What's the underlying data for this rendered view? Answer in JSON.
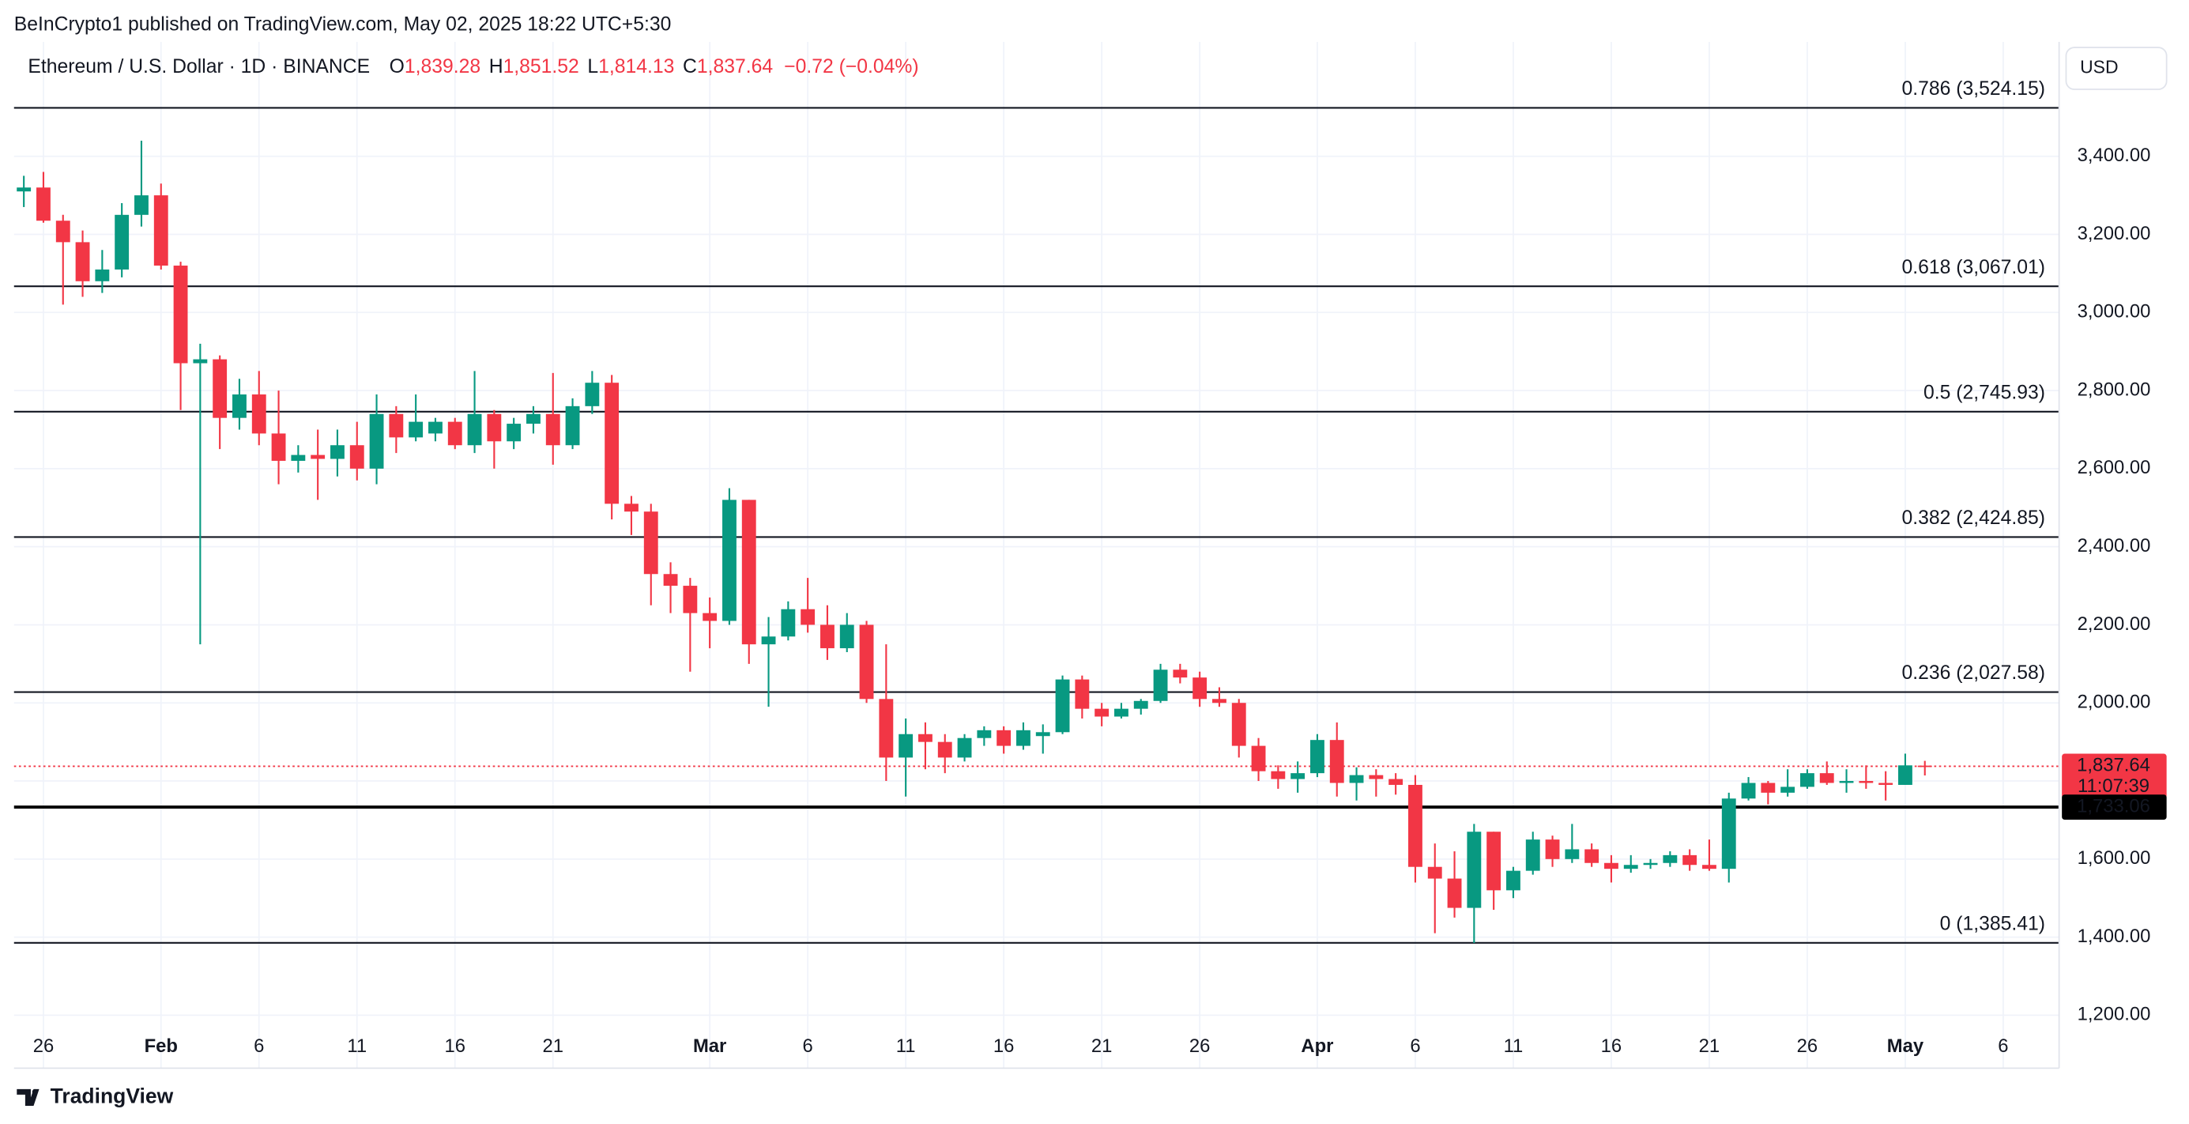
{
  "header": {
    "published": "BeInCrypto1 published on TradingView.com, May 02, 2025 18:22 UTC+5:30",
    "symbol": "Ethereum / U.S. Dollar · 1D · BINANCE",
    "ohlc": [
      {
        "key": "O",
        "value": "1,839.28"
      },
      {
        "key": "H",
        "value": "1,851.52"
      },
      {
        "key": "L",
        "value": "1,814.13"
      },
      {
        "key": "C",
        "value": "1,837.64"
      }
    ],
    "change": "−0.72 (−0.04%)"
  },
  "chart_data": {
    "type": "candlestick",
    "currency": "USD",
    "categories": [
      null,
      "26",
      null,
      null,
      null,
      null,
      null,
      "Feb",
      null,
      null,
      null,
      null,
      "6",
      null,
      null,
      null,
      null,
      "11",
      null,
      null,
      null,
      null,
      "16",
      null,
      null,
      null,
      null,
      "21",
      null,
      null,
      null,
      null,
      null,
      null,
      null,
      "Mar",
      null,
      null,
      null,
      null,
      "6",
      null,
      null,
      null,
      null,
      "11",
      null,
      null,
      null,
      null,
      "16",
      null,
      null,
      null,
      null,
      "21",
      null,
      null,
      null,
      null,
      "26",
      null,
      null,
      null,
      null,
      null,
      "Apr",
      null,
      null,
      null,
      null,
      "6",
      null,
      null,
      null,
      null,
      "11",
      null,
      null,
      null,
      null,
      "16",
      null,
      null,
      null,
      null,
      "21",
      null,
      null,
      null,
      null,
      "26",
      null,
      null,
      null,
      null,
      "May",
      null,
      null,
      null,
      null,
      "6",
      null,
      null
    ],
    "open": [
      3310,
      3320,
      3235,
      3180,
      3080,
      3110,
      3250,
      3300,
      3120,
      2870,
      2880,
      2730,
      2790,
      2690,
      2620,
      2635,
      2625,
      2660,
      2600,
      2740,
      2680,
      2690,
      2720,
      2660,
      2740,
      2670,
      2715,
      2740,
      2660,
      2760,
      2820,
      2510,
      2490,
      2330,
      2300,
      2230,
      2210,
      2520,
      2150,
      2170,
      2240,
      2200,
      2140,
      2200,
      2010,
      1860,
      1920,
      1900,
      1860,
      1910,
      1930,
      1890,
      1915,
      1925,
      2060,
      1985,
      1965,
      1985,
      2005,
      2085,
      2065,
      2010,
      2000,
      1890,
      1825,
      1805,
      1820,
      1905,
      1795,
      1815,
      1805,
      1790,
      1580,
      1550,
      1475,
      1670,
      1520,
      1570,
      1650,
      1600,
      1625,
      1590,
      1575,
      1585,
      1590,
      1610,
      1585,
      1575,
      1755,
      1795,
      1770,
      1785,
      1820,
      1795,
      1800,
      1795,
      1790,
      1839.28,
      null,
      null,
      null,
      null,
      null,
      null
    ],
    "high": [
      3350,
      3360,
      3250,
      3210,
      3160,
      3280,
      3440,
      3330,
      3130,
      2920,
      2890,
      2830,
      2850,
      2800,
      2660,
      2700,
      2700,
      2720,
      2790,
      2760,
      2790,
      2730,
      2730,
      2850,
      2750,
      2730,
      2760,
      2845,
      2780,
      2850,
      2840,
      2530,
      2510,
      2360,
      2320,
      2270,
      2550,
      2520,
      2220,
      2260,
      2320,
      2250,
      2230,
      2210,
      2150,
      1960,
      1950,
      1920,
      1920,
      1940,
      1940,
      1950,
      1945,
      2070,
      2070,
      2000,
      2000,
      2010,
      2100,
      2100,
      2080,
      2040,
      2010,
      1910,
      1840,
      1850,
      1920,
      1950,
      1835,
      1830,
      1820,
      1815,
      1640,
      1620,
      1690,
      1670,
      1580,
      1670,
      1660,
      1690,
      1640,
      1610,
      1610,
      1600,
      1620,
      1625,
      1650,
      1770,
      1810,
      1800,
      1830,
      1830,
      1850,
      1830,
      1840,
      1825,
      1870,
      1851.52,
      null,
      null,
      null,
      null,
      null,
      null
    ],
    "low": [
      3270,
      3230,
      3020,
      3040,
      3050,
      3090,
      3220,
      3110,
      2750,
      2150,
      2650,
      2700,
      2660,
      2560,
      2590,
      2520,
      2580,
      2570,
      2560,
      2640,
      2670,
      2670,
      2650,
      2640,
      2600,
      2650,
      2690,
      2610,
      2650,
      2740,
      2470,
      2430,
      2250,
      2230,
      2080,
      2140,
      2200,
      2100,
      1990,
      2160,
      2180,
      2110,
      2130,
      2000,
      1800,
      1760,
      1830,
      1820,
      1850,
      1890,
      1870,
      1880,
      1870,
      1920,
      1960,
      1940,
      1960,
      1970,
      2000,
      2050,
      1990,
      1990,
      1860,
      1800,
      1780,
      1770,
      1810,
      1760,
      1750,
      1760,
      1765,
      1540,
      1410,
      1450,
      1385,
      1470,
      1500,
      1560,
      1580,
      1590,
      1580,
      1540,
      1565,
      1575,
      1580,
      1570,
      1570,
      1540,
      1750,
      1740,
      1760,
      1780,
      1790,
      1770,
      1780,
      1750,
      1790,
      1814.13,
      null,
      null,
      null,
      null,
      null,
      null
    ],
    "close": [
      3320,
      3235,
      3180,
      3080,
      3110,
      3250,
      3300,
      3120,
      2870,
      2880,
      2730,
      2790,
      2690,
      2620,
      2635,
      2625,
      2660,
      2600,
      2740,
      2680,
      2720,
      2720,
      2660,
      2740,
      2670,
      2715,
      2740,
      2660,
      2760,
      2820,
      2510,
      2490,
      2330,
      2300,
      2230,
      2210,
      2520,
      2150,
      2170,
      2240,
      2200,
      2140,
      2200,
      2010,
      1860,
      1920,
      1900,
      1860,
      1910,
      1930,
      1890,
      1930,
      1925,
      2060,
      1985,
      1965,
      1985,
      2005,
      2085,
      2065,
      2010,
      2000,
      1890,
      1825,
      1805,
      1820,
      1905,
      1795,
      1815,
      1805,
      1790,
      1580,
      1550,
      1475,
      1670,
      1520,
      1570,
      1650,
      1600,
      1625,
      1590,
      1575,
      1585,
      1590,
      1610,
      1585,
      1575,
      1755,
      1795,
      1770,
      1785,
      1820,
      1795,
      1800,
      1795,
      1790,
      1840,
      1837.64,
      null,
      null,
      null,
      null,
      null,
      null
    ],
    "up_color": "#089981",
    "down_color": "#f23645",
    "ylim": [
      1136,
      3693
    ],
    "yticks": [
      {
        "value": 1200,
        "label": "1,200.00"
      },
      {
        "value": 1400,
        "label": "1,400.00"
      },
      {
        "value": 1600,
        "label": "1,600.00"
      },
      {
        "value": 1800,
        "label": "1,800.00"
      },
      {
        "value": 2000,
        "label": "2,000.00"
      },
      {
        "value": 2200,
        "label": "2,200.00"
      },
      {
        "value": 2400,
        "label": "2,400.00"
      },
      {
        "value": 2600,
        "label": "2,600.00"
      },
      {
        "value": 2800,
        "label": "2,800.00"
      },
      {
        "value": 3000,
        "label": "3,000.00"
      },
      {
        "value": 3200,
        "label": "3,200.00"
      },
      {
        "value": 3400,
        "label": "3,400.00"
      }
    ],
    "grid": true,
    "levels": [
      {
        "value": 3524.15,
        "label": "0.786 (3,524.15)"
      },
      {
        "value": 3067.01,
        "label": "0.618 (3,067.01)"
      },
      {
        "value": 2745.93,
        "label": "0.5 (2,745.93)"
      },
      {
        "value": 2424.85,
        "label": "0.382 (2,424.85)"
      },
      {
        "value": 2027.58,
        "label": "0.236 (2,027.58)"
      },
      {
        "value": 1385.41,
        "label": "0 (1,385.41)"
      }
    ],
    "support": {
      "value": 1733.06,
      "label": "1,733.06",
      "color": "#000000"
    },
    "last_price": {
      "value": 1837.64,
      "label": "1,837.64",
      "countdown": "11:07:39",
      "color": "#f23645"
    }
  },
  "footer": {
    "logo": "TradingView"
  }
}
